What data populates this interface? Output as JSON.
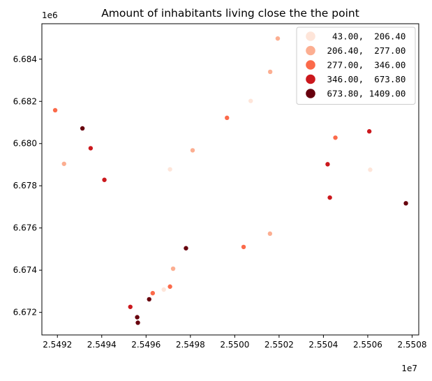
{
  "chart_data": {
    "type": "scatter",
    "title": "Amount of inhabitants living close the the point",
    "xlabel": "",
    "ylabel": "",
    "x_offset_label": "1e7",
    "y_offset_label": "1e6",
    "xlim": [
      2.54913,
      2.55083
    ],
    "ylim": [
      6.67093,
      6.68568
    ],
    "x_ticks": [
      2.5492,
      2.5494,
      2.5496,
      2.5498,
      2.55,
      2.5502,
      2.5504,
      2.5506,
      2.5508
    ],
    "x_tick_labels": [
      "2.5492",
      "2.5494",
      "2.5496",
      "2.5498",
      "2.5500",
      "2.5502",
      "2.5504",
      "2.5506",
      "2.5508"
    ],
    "y_ticks": [
      6.672,
      6.674,
      6.676,
      6.678,
      6.68,
      6.682,
      6.684
    ],
    "y_tick_labels": [
      "6.672",
      "6.674",
      "6.676",
      "6.678",
      "6.680",
      "6.682",
      "6.684"
    ],
    "grid": false,
    "legend_position": "top-right",
    "classes": [
      {
        "label": "  43.00,  206.40",
        "color": "#fee5d9"
      },
      {
        "label": " 206.40,  277.00",
        "color": "#fcae91"
      },
      {
        "label": " 277.00,  346.00",
        "color": "#fb6a4a"
      },
      {
        "label": " 346.00,  673.80",
        "color": "#cb181d"
      },
      {
        "label": " 673.80, 1409.00",
        "color": "#67000d"
      }
    ],
    "points": [
      {
        "x": 2.54919,
        "y": 6.68158,
        "class": 2
      },
      {
        "x": 2.54923,
        "y": 6.67904,
        "class": 1
      },
      {
        "x": 2.549313,
        "y": 6.68072,
        "class": 4
      },
      {
        "x": 2.54935,
        "y": 6.67978,
        "class": 3
      },
      {
        "x": 2.549412,
        "y": 6.67828,
        "class": 3
      },
      {
        "x": 2.549708,
        "y": 6.67878,
        "class": 0
      },
      {
        "x": 2.54981,
        "y": 6.67968,
        "class": 1
      },
      {
        "x": 2.549965,
        "y": 6.68122,
        "class": 2
      },
      {
        "x": 2.550072,
        "y": 6.68202,
        "class": 0
      },
      {
        "x": 2.55016,
        "y": 6.6834,
        "class": 1
      },
      {
        "x": 2.550194,
        "y": 6.68498,
        "class": 1
      },
      {
        "x": 2.550419,
        "y": 6.67902,
        "class": 3
      },
      {
        "x": 2.550429,
        "y": 6.67744,
        "class": 3
      },
      {
        "x": 2.550454,
        "y": 6.68028,
        "class": 2
      },
      {
        "x": 2.550607,
        "y": 6.68058,
        "class": 3
      },
      {
        "x": 2.550611,
        "y": 6.67876,
        "class": 0
      },
      {
        "x": 2.550772,
        "y": 6.67717,
        "class": 4
      },
      {
        "x": 2.54978,
        "y": 6.67504,
        "class": 4
      },
      {
        "x": 2.55004,
        "y": 6.6751,
        "class": 2
      },
      {
        "x": 2.550159,
        "y": 6.67573,
        "class": 1
      },
      {
        "x": 2.549722,
        "y": 6.67407,
        "class": 1
      },
      {
        "x": 2.549708,
        "y": 6.67322,
        "class": 2
      },
      {
        "x": 2.54968,
        "y": 6.67308,
        "class": 0
      },
      {
        "x": 2.54963,
        "y": 6.67291,
        "class": 2
      },
      {
        "x": 2.549614,
        "y": 6.67262,
        "class": 4
      },
      {
        "x": 2.549529,
        "y": 6.67226,
        "class": 3
      },
      {
        "x": 2.54956,
        "y": 6.67177,
        "class": 4
      },
      {
        "x": 2.549563,
        "y": 6.67151,
        "class": 4
      }
    ]
  }
}
